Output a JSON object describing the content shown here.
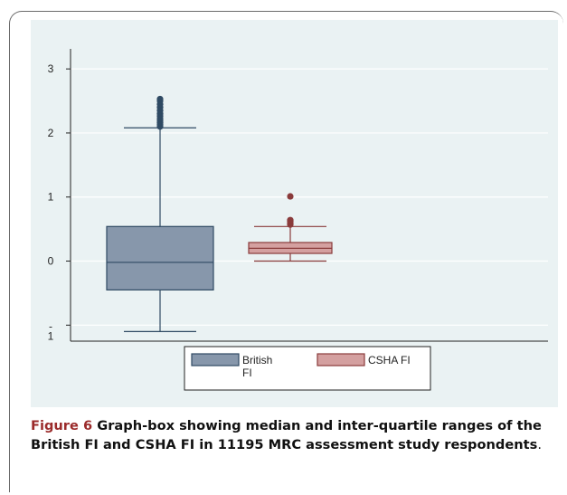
{
  "chart_data": {
    "type": "box",
    "title": "",
    "xlabel": "",
    "ylabel": "",
    "ylim": [
      -1.25,
      3.2
    ],
    "yticks": [
      {
        "value": 3,
        "label": "3"
      },
      {
        "value": 2,
        "label": "2"
      },
      {
        "value": 1,
        "label": "1"
      },
      {
        "value": 0,
        "label": "0"
      },
      {
        "value": -1,
        "label": "-\n1"
      }
    ],
    "grid": true,
    "legend_position": "bottom",
    "series": [
      {
        "name": "British FI",
        "legend_lines": [
          "British",
          "FI"
        ],
        "color": "#8797ab",
        "stroke": "#2f4a63",
        "whisker_low": -1.1,
        "q1": -0.45,
        "median": -0.02,
        "q3": 0.54,
        "whisker_high": 2.08,
        "outliers": [
          2.1,
          2.13,
          2.16,
          2.19,
          2.22,
          2.26,
          2.3,
          2.35,
          2.4,
          2.45,
          2.5,
          2.53
        ]
      },
      {
        "name": "CSHA FI",
        "legend_lines": [
          "CSHA FI"
        ],
        "color": "#d4a0a0",
        "stroke": "#8a3b3b",
        "whisker_low": 0.0,
        "q1": 0.12,
        "median": 0.2,
        "q3": 0.29,
        "whisker_high": 0.54,
        "outliers": [
          0.57,
          0.59,
          0.62,
          0.64,
          1.01
        ]
      }
    ]
  },
  "caption": {
    "label": "Figure 6",
    "text": " Graph-box showing median and inter-quartile ranges of the British FI and CSHA FI in 11195 MRC assessment study respondents",
    "tail": "."
  }
}
